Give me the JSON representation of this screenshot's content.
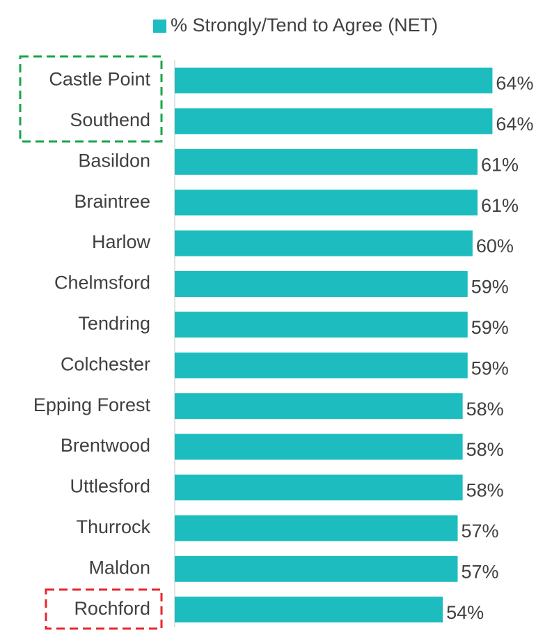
{
  "chart_data": {
    "type": "bar",
    "orientation": "horizontal",
    "categories": [
      "Castle Point",
      "Southend",
      "Basildon",
      "Braintree",
      "Harlow",
      "Chelmsford",
      "Tendring",
      "Colchester",
      "Epping Forest",
      "Brentwood",
      "Uttlesford",
      "Thurrock",
      "Maldon",
      "Rochford"
    ],
    "series": [
      {
        "name": "% Strongly/Tend to Agree (NET)",
        "color": "#1cbcbf",
        "values": [
          64,
          64,
          61,
          61,
          60,
          59,
          59,
          59,
          58,
          58,
          58,
          57,
          57,
          54
        ],
        "value_labels": [
          "64%",
          "64%",
          "61%",
          "61%",
          "60%",
          "59%",
          "59%",
          "59%",
          "58%",
          "58%",
          "58%",
          "57%",
          "57%",
          "54%"
        ]
      }
    ],
    "xlim": [
      0,
      76
    ],
    "legend": "top"
  }
}
